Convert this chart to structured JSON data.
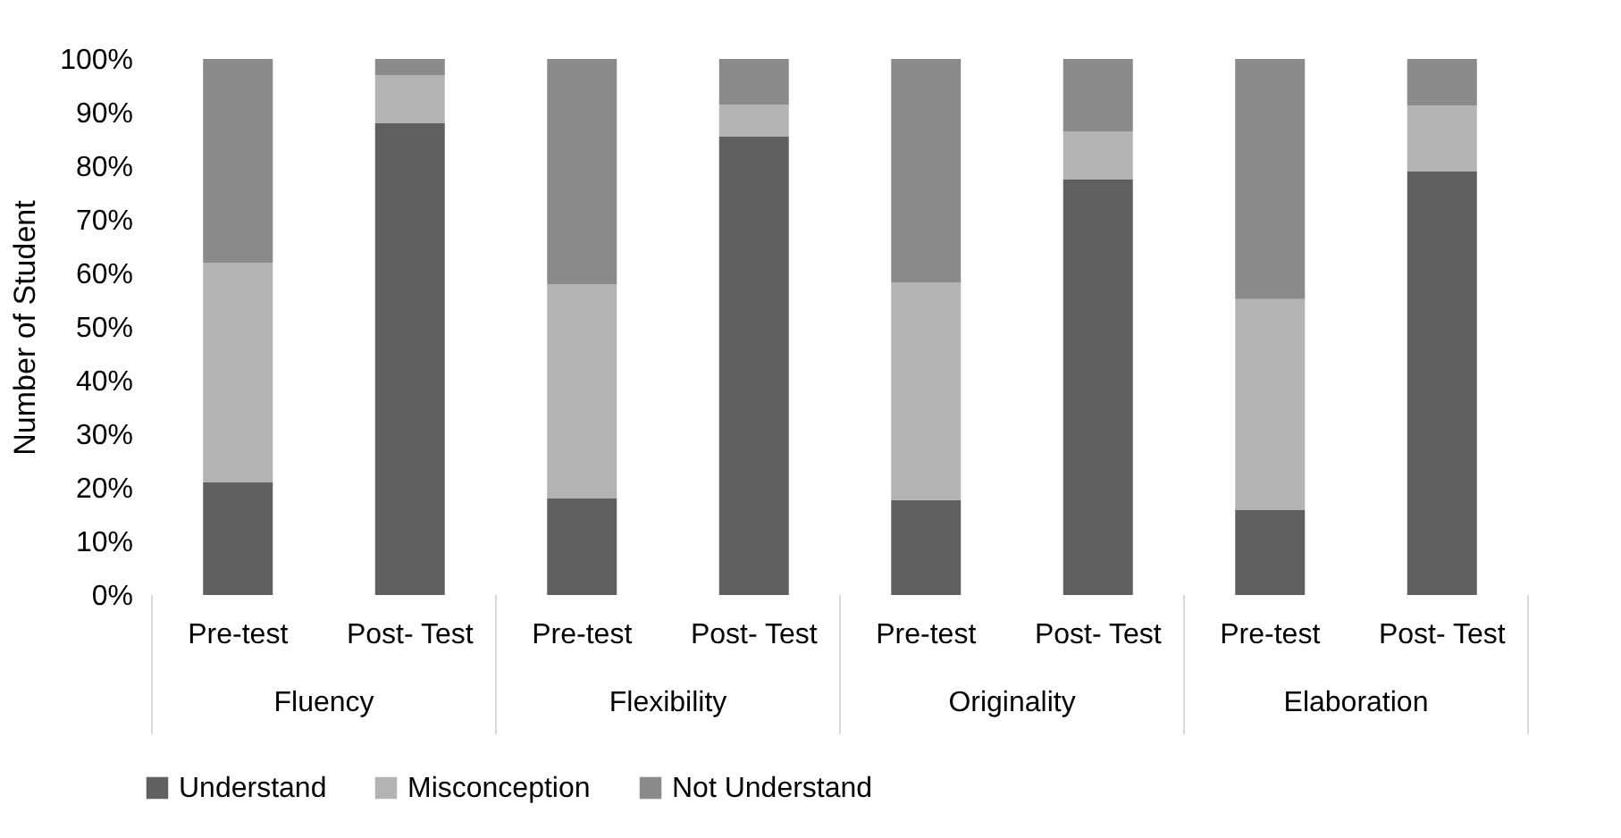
{
  "chart_data": {
    "type": "bar",
    "stacked": true,
    "ylabel": "Number of Student",
    "categories": [
      "Pre-test",
      "Post- Test",
      "Pre-test",
      "Post- Test",
      "Pre-test",
      "Post- Test",
      "Pre-test",
      "Post- Test"
    ],
    "annotations": [
      "Fluency",
      "Flexibility",
      "Originality",
      "Elaboration"
    ],
    "series": [
      {
        "name": "Understand",
        "color": "#606060",
        "values": [
          21,
          88,
          18,
          85.5,
          17.7,
          77.6,
          15.9,
          79.1
        ]
      },
      {
        "name": "Misconception",
        "color": "#b3b3b3",
        "values": [
          41,
          9,
          40,
          6,
          40.6,
          8.8,
          39.3,
          12.2
        ]
      },
      {
        "name": "Not Understand",
        "color": "#8a8a8a",
        "values": [
          38,
          3,
          42,
          8.5,
          41.7,
          13.6,
          44.8,
          8.7
        ]
      }
    ],
    "ylim": [
      0,
      100
    ],
    "yticks": [
      {
        "value": 0,
        "label": "0%"
      },
      {
        "value": 10,
        "label": "10%"
      },
      {
        "value": 20,
        "label": "20%"
      },
      {
        "value": 30,
        "label": "30%"
      },
      {
        "value": 40,
        "label": "40%"
      },
      {
        "value": 50,
        "label": "50%"
      },
      {
        "value": 60,
        "label": "60%"
      },
      {
        "value": 70,
        "label": "70%"
      },
      {
        "value": 80,
        "label": "80%"
      },
      {
        "value": 90,
        "label": "90%"
      },
      {
        "value": 100,
        "label": "100%"
      }
    ],
    "grid": false,
    "legend": "bottom"
  }
}
